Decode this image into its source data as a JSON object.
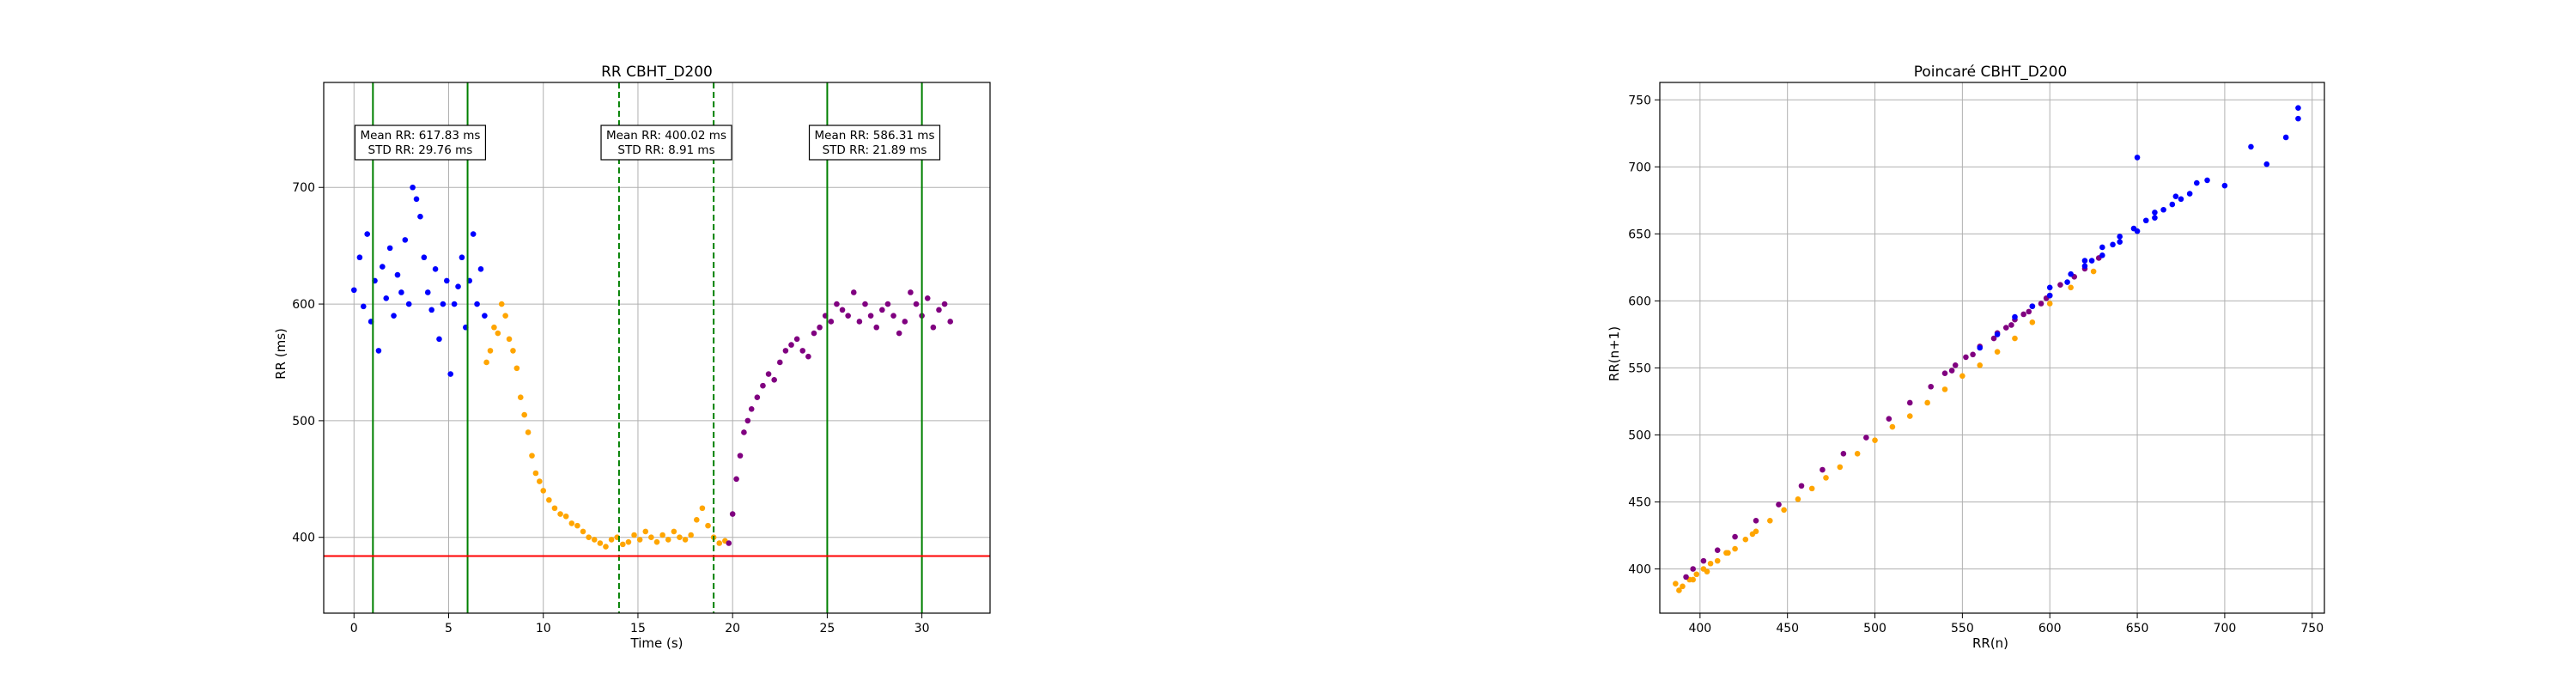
{
  "chart_data": [
    {
      "type": "scatter",
      "title": "RR CBHT_D200",
      "xlabel": "Time (s)",
      "ylabel": "RR (ms)",
      "xlim": [
        -1.6,
        33.6
      ],
      "ylim": [
        335,
        790
      ],
      "xticks": [
        0,
        5,
        10,
        15,
        20,
        25,
        30
      ],
      "yticks": [
        400,
        500,
        600,
        700
      ],
      "grid": true,
      "colors": {
        "phase1": "#0000ff",
        "phase2": "#ffa500",
        "phase3": "#800080",
        "threshold": "#ff0000",
        "markers": "#008000"
      },
      "threshold_y": 384,
      "vlines": [
        {
          "x": 1.0,
          "style": "solid"
        },
        {
          "x": 6.0,
          "style": "solid"
        },
        {
          "x": 14.0,
          "style": "dashed"
        },
        {
          "x": 19.0,
          "style": "dashed"
        },
        {
          "x": 25.0,
          "style": "solid"
        },
        {
          "x": 30.0,
          "style": "solid"
        }
      ],
      "annotations": [
        {
          "x": 3.5,
          "line1": "Mean RR: 617.83 ms",
          "line2": "STD RR: 29.76 ms"
        },
        {
          "x": 16.5,
          "line1": "Mean RR: 400.02 ms",
          "line2": "STD RR: 8.91 ms"
        },
        {
          "x": 27.5,
          "line1": "Mean RR: 586.31 ms",
          "line2": "STD RR: 21.89 ms"
        }
      ],
      "series": [
        {
          "color": "#0000ff",
          "x": [
            0.0,
            0.3,
            0.5,
            0.7,
            0.9,
            1.1,
            1.3,
            1.5,
            1.7,
            1.9,
            2.1,
            2.3,
            2.5,
            2.7,
            2.9,
            3.1,
            3.3,
            3.4,
            3.5,
            3.7,
            3.9,
            4.1,
            4.3,
            4.5,
            4.7,
            4.9,
            5.1,
            5.3,
            5.5,
            5.7,
            5.9,
            6.1,
            6.3,
            6.5,
            6.7,
            6.9
          ],
          "y": [
            612,
            640,
            598,
            660,
            585,
            620,
            560,
            632,
            605,
            648,
            590,
            625,
            610,
            655,
            600,
            700,
            690,
            726,
            675,
            640,
            610,
            595,
            630,
            570,
            600,
            620,
            540,
            600,
            615,
            640,
            580,
            620,
            660,
            600,
            630,
            590
          ]
        },
        {
          "color": "#ffa500",
          "x": [
            7.0,
            7.2,
            7.4,
            7.6,
            7.8,
            8.0,
            8.2,
            8.4,
            8.6,
            8.8,
            9.0,
            9.2,
            9.4,
            9.6,
            9.8,
            10.0,
            10.3,
            10.6,
            10.9,
            11.2,
            11.5,
            11.8,
            12.1,
            12.4,
            12.7,
            13.0,
            13.3,
            13.6,
            13.9,
            14.2,
            14.5,
            14.8,
            15.1,
            15.4,
            15.7,
            16.0,
            16.3,
            16.6,
            16.9,
            17.2,
            17.5,
            17.8,
            18.1,
            18.4,
            18.7,
            19.0,
            19.3,
            19.6
          ],
          "y": [
            550,
            560,
            580,
            575,
            600,
            590,
            570,
            560,
            545,
            520,
            505,
            490,
            470,
            455,
            448,
            440,
            432,
            425,
            420,
            418,
            412,
            410,
            405,
            400,
            398,
            395,
            392,
            398,
            400,
            394,
            396,
            402,
            398,
            405,
            400,
            396,
            402,
            398,
            405,
            400,
            398,
            402,
            415,
            425,
            410,
            400,
            395,
            397
          ]
        },
        {
          "color": "#800080",
          "x": [
            19.8,
            20.0,
            20.2,
            20.4,
            20.6,
            20.8,
            21.0,
            21.3,
            21.6,
            21.9,
            22.2,
            22.5,
            22.8,
            23.1,
            23.4,
            23.7,
            24.0,
            24.3,
            24.6,
            24.9,
            25.2,
            25.5,
            25.8,
            26.1,
            26.4,
            26.7,
            27.0,
            27.3,
            27.6,
            27.9,
            28.2,
            28.5,
            28.8,
            29.1,
            29.4,
            29.7,
            30.0,
            30.3,
            30.6,
            30.9,
            31.2,
            31.5
          ],
          "y": [
            395,
            420,
            450,
            470,
            490,
            500,
            510,
            520,
            530,
            540,
            535,
            550,
            560,
            565,
            570,
            560,
            555,
            575,
            580,
            590,
            585,
            600,
            595,
            590,
            610,
            585,
            600,
            590,
            580,
            595,
            600,
            590,
            575,
            585,
            610,
            600,
            590,
            605,
            580,
            595,
            600,
            585
          ]
        }
      ]
    },
    {
      "type": "scatter",
      "title": "Poincaré CBHT_D200",
      "xlabel": "RR(n)",
      "ylabel": "RR(n+1)",
      "xlim": [
        377,
        757
      ],
      "ylim": [
        367,
        763
      ],
      "xticks": [
        400,
        450,
        500,
        550,
        600,
        650,
        700,
        750
      ],
      "yticks": [
        400,
        450,
        500,
        550,
        600,
        650,
        700,
        750
      ],
      "grid": true,
      "series": [
        {
          "color": "#ffa500",
          "x": [
            386,
            390,
            394,
            398,
            402,
            406,
            410,
            415,
            420,
            426,
            432,
            440,
            448,
            456,
            464,
            472,
            480,
            490,
            500,
            510,
            520,
            530,
            540,
            550,
            560,
            570,
            580,
            590,
            600,
            612,
            625,
            388,
            396,
            404,
            416,
            430
          ],
          "y": [
            389,
            387,
            392,
            396,
            400,
            404,
            406,
            412,
            415,
            422,
            428,
            436,
            444,
            452,
            460,
            468,
            476,
            486,
            496,
            506,
            514,
            524,
            534,
            544,
            552,
            562,
            572,
            584,
            598,
            610,
            622,
            384,
            392,
            398,
            412,
            426
          ]
        },
        {
          "color": "#800080",
          "x": [
            392,
            396,
            402,
            410,
            420,
            432,
            445,
            458,
            470,
            482,
            495,
            508,
            520,
            532,
            544,
            556,
            568,
            578,
            588,
            598,
            606,
            614,
            620,
            628,
            560,
            570,
            580,
            590,
            600,
            546,
            540,
            552,
            575,
            585,
            595
          ],
          "y": [
            394,
            400,
            406,
            414,
            424,
            436,
            448,
            462,
            474,
            486,
            498,
            512,
            524,
            536,
            548,
            560,
            572,
            582,
            592,
            602,
            612,
            618,
            624,
            632,
            566,
            576,
            586,
            596,
            604,
            552,
            546,
            558,
            580,
            590,
            598
          ]
        },
        {
          "color": "#0000ff",
          "x": [
            560,
            570,
            580,
            590,
            600,
            610,
            620,
            630,
            640,
            650,
            660,
            670,
            680,
            690,
            600,
            612,
            624,
            636,
            648,
            660,
            672,
            684,
            700,
            715,
            724,
            735,
            742,
            742,
            650,
            630,
            620,
            640,
            655,
            665,
            675
          ],
          "y": [
            565,
            575,
            588,
            596,
            604,
            614,
            626,
            634,
            644,
            652,
            662,
            672,
            680,
            690,
            610,
            620,
            630,
            642,
            654,
            666,
            678,
            688,
            686,
            715,
            702,
            722,
            744,
            736,
            707,
            640,
            630,
            648,
            660,
            668,
            676
          ]
        }
      ]
    }
  ]
}
